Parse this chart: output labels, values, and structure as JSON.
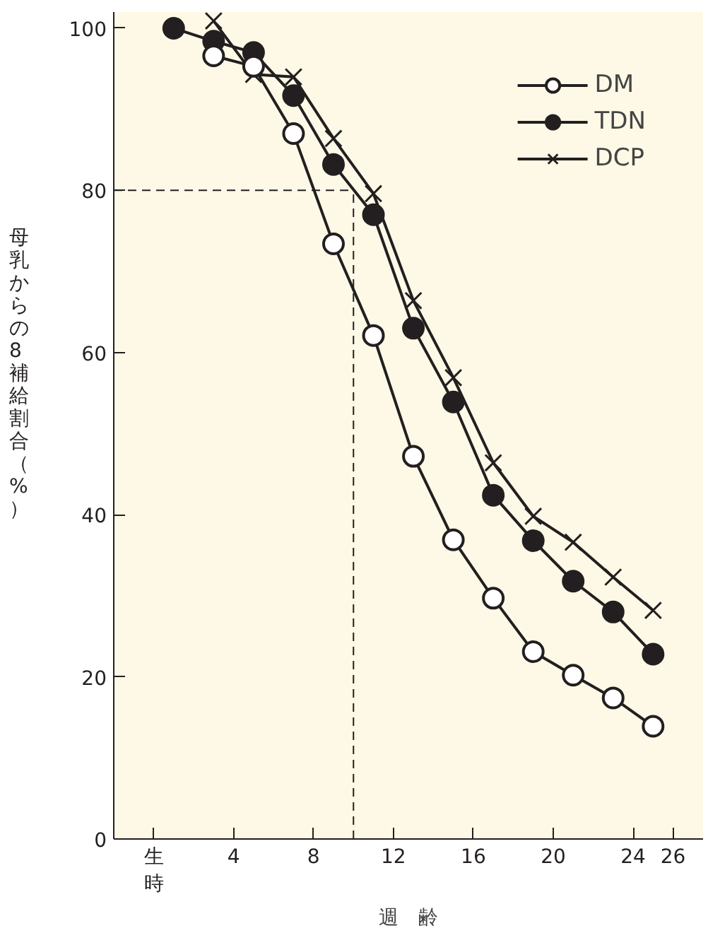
{
  "chart_data": {
    "type": "line",
    "xlabel": "週　齢",
    "ylabel": "母乳からの8補給割合（%）",
    "xlim": [
      -2,
      27.5
    ],
    "ylim": [
      0,
      102
    ],
    "xticks": [
      {
        "value": 0,
        "label": "生時"
      },
      4,
      8,
      12,
      16,
      20,
      24,
      26
    ],
    "yticks": [
      0,
      20,
      40,
      60,
      80,
      100
    ],
    "legend": "top right",
    "grid": false,
    "line_style": "solid",
    "ref_lines": [
      {
        "axis": "y",
        "value": 80,
        "color": "#231f20",
        "line_style": "dashed"
      },
      {
        "axis": "x",
        "value": 10,
        "color": "#231f20",
        "line_style": "dashed"
      }
    ],
    "series": [
      {
        "name": "DM",
        "color": "#231f20",
        "marker": "circle",
        "x": [
          3,
          5,
          7,
          9,
          11,
          13,
          15,
          17,
          19,
          21,
          23,
          25
        ],
        "values": [
          96.6,
          95.3,
          87.0,
          73.4,
          62.1,
          47.2,
          36.9,
          29.7,
          23.1,
          20.2,
          17.4,
          13.9
        ]
      },
      {
        "name": "TDN",
        "color": "#231f20",
        "marker": "circle",
        "x": [
          1,
          3,
          5,
          7,
          9,
          11,
          13,
          15,
          17,
          19,
          21,
          23,
          25
        ],
        "values": [
          100,
          98.4,
          97.0,
          91.7,
          83.2,
          77.0,
          63.0,
          53.9,
          42.4,
          36.8,
          31.8,
          28.0,
          22.8
        ]
      },
      {
        "name": "DCP",
        "color": "#231f20",
        "marker": "cross",
        "x": [
          3,
          5,
          7,
          9,
          11,
          13,
          15,
          17,
          19,
          21,
          23,
          25
        ],
        "values": [
          100.9,
          94.3,
          94.0,
          86.4,
          79.6,
          66.4,
          56.9,
          46.4,
          39.8,
          36.6,
          32.3,
          28.2
        ]
      }
    ]
  }
}
